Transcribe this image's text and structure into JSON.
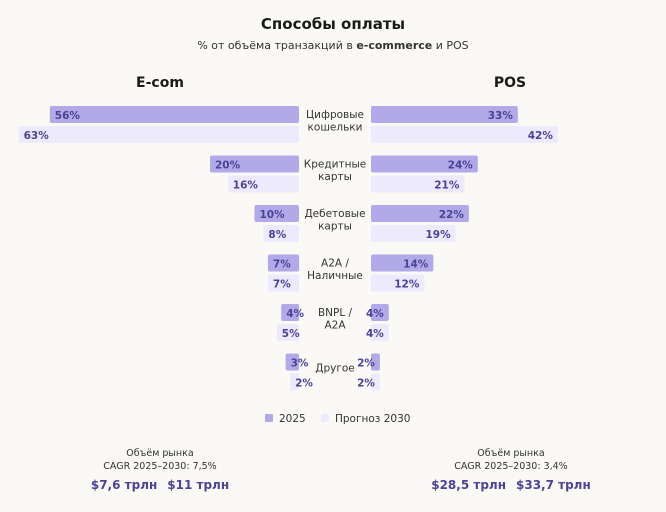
{
  "chart_data": {
    "type": "bar",
    "title": "Способы оплаты",
    "subtitle": {
      "pre": "% от объёма транзакций в ",
      "bold": "e-commerce",
      "post": " и POS"
    },
    "categories": [
      [
        "Цифровые",
        "кошельки"
      ],
      [
        "Кредитные",
        "карты"
      ],
      [
        "Дебетовые",
        "карты"
      ],
      [
        "A2A /",
        "Наличные"
      ],
      [
        "BNPL /",
        "A2A"
      ],
      [
        "Другое"
      ]
    ],
    "panels": [
      {
        "name": "E-com",
        "series": [
          {
            "name": "2025",
            "values": [
              56,
              20,
              10,
              7,
              4,
              3
            ]
          },
          {
            "name": "Прогноз 2030",
            "values": [
              63,
              16,
              8,
              7,
              5,
              2
            ]
          }
        ]
      },
      {
        "name": "POS",
        "series": [
          {
            "name": "2025",
            "values": [
              33,
              24,
              22,
              14,
              4,
              2
            ]
          },
          {
            "name": "Прогноз 2030",
            "values": [
              42,
              21,
              19,
              12,
              4,
              2
            ]
          }
        ]
      }
    ],
    "legend": [
      "2025",
      "Прогноз 2030"
    ],
    "colors": {
      "2025": "#b2a9e9",
      "forecast": "#eceafc",
      "label": "#4a4396"
    },
    "value_suffix": "%",
    "market": [
      {
        "line1": "Объём рынка",
        "line2": "CAGR 2025–2030: 7,5%",
        "v2025": "$7,6 трлн",
        "v2030": "$11 трлн"
      },
      {
        "line1": "Объём рынка",
        "line2": "CAGR 2025–2030: 3,4%",
        "v2025": "$28,5 трлн",
        "v2030": "$33,7 трлн"
      }
    ]
  }
}
